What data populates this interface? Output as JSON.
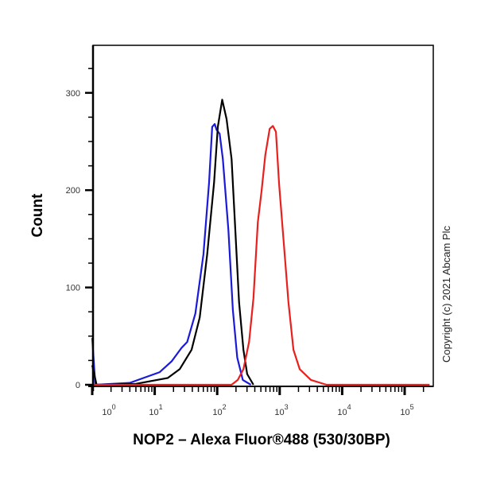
{
  "chart_data": {
    "type": "line",
    "title": "",
    "xlabel": "NOP2 – Alexa Fluor®488 (530/30BP)",
    "ylabel": "Count",
    "x_scale": "log",
    "x_tick_labels": [
      "10^0",
      "10^1",
      "10^2",
      "10^3",
      "10^4",
      "10^5"
    ],
    "y_tick_labels": [
      "0",
      "100",
      "200",
      "300"
    ],
    "ylim": [
      0,
      350
    ],
    "xlim_log10": [
      0,
      5.4
    ],
    "grid": false,
    "legend": null,
    "annotation": "Copyright (c) 2021 Abcam Plc",
    "series": [
      {
        "name": "blue",
        "color": "#1a1ad8",
        "points_log10x_count": [
          [
            0.0,
            48
          ],
          [
            0.05,
            0
          ],
          [
            0.6,
            2
          ],
          [
            1.08,
            13
          ],
          [
            1.27,
            24
          ],
          [
            1.43,
            38
          ],
          [
            1.52,
            44
          ],
          [
            1.65,
            73
          ],
          [
            1.78,
            134
          ],
          [
            1.87,
            208
          ],
          [
            1.92,
            265
          ],
          [
            1.96,
            268
          ],
          [
            1.99,
            262
          ],
          [
            2.04,
            258
          ],
          [
            2.09,
            232
          ],
          [
            2.18,
            159
          ],
          [
            2.25,
            77
          ],
          [
            2.32,
            28
          ],
          [
            2.41,
            5
          ],
          [
            2.54,
            0
          ]
        ]
      },
      {
        "name": "black",
        "color": "#000000",
        "points_log10x_count": [
          [
            0.0,
            20
          ],
          [
            0.07,
            0
          ],
          [
            0.7,
            1
          ],
          [
            1.21,
            7
          ],
          [
            1.4,
            16
          ],
          [
            1.59,
            36
          ],
          [
            1.72,
            69
          ],
          [
            1.84,
            134
          ],
          [
            1.95,
            208
          ],
          [
            2.01,
            265
          ],
          [
            2.08,
            293
          ],
          [
            2.15,
            273
          ],
          [
            2.23,
            232
          ],
          [
            2.29,
            159
          ],
          [
            2.35,
            85
          ],
          [
            2.42,
            36
          ],
          [
            2.48,
            11
          ],
          [
            2.58,
            0
          ]
        ]
      },
      {
        "name": "red",
        "color": "#e8201e",
        "points_log10x_count": [
          [
            0.0,
            0
          ],
          [
            2.23,
            0
          ],
          [
            2.33,
            5
          ],
          [
            2.42,
            16
          ],
          [
            2.51,
            44
          ],
          [
            2.58,
            89
          ],
          [
            2.65,
            167
          ],
          [
            2.71,
            199
          ],
          [
            2.77,
            236
          ],
          [
            2.84,
            263
          ],
          [
            2.89,
            266
          ],
          [
            2.94,
            260
          ],
          [
            2.99,
            207
          ],
          [
            3.07,
            142
          ],
          [
            3.14,
            85
          ],
          [
            3.22,
            36
          ],
          [
            3.32,
            16
          ],
          [
            3.5,
            5
          ],
          [
            3.75,
            0
          ],
          [
            5.4,
            0
          ]
        ]
      }
    ]
  },
  "axes": {
    "y_ticks": [
      {
        "label": "0",
        "value": 0
      },
      {
        "label": "100",
        "value": 100
      },
      {
        "label": "200",
        "value": 200
      },
      {
        "label": "300",
        "value": 300
      }
    ],
    "x_ticks": [
      {
        "base": "10",
        "exp": "0",
        "decade": 0
      },
      {
        "base": "10",
        "exp": "1",
        "decade": 1
      },
      {
        "base": "10",
        "exp": "2",
        "decade": 2
      },
      {
        "base": "10",
        "exp": "3",
        "decade": 3
      },
      {
        "base": "10",
        "exp": "4",
        "decade": 4
      },
      {
        "base": "10",
        "exp": "5",
        "decade": 5
      }
    ]
  },
  "labels": {
    "ylabel": "Count",
    "xlabel": "NOP2 – Alexa Fluor®488 (530/30BP)",
    "copyright": "Copyright (c) 2021 Abcam Plc"
  }
}
